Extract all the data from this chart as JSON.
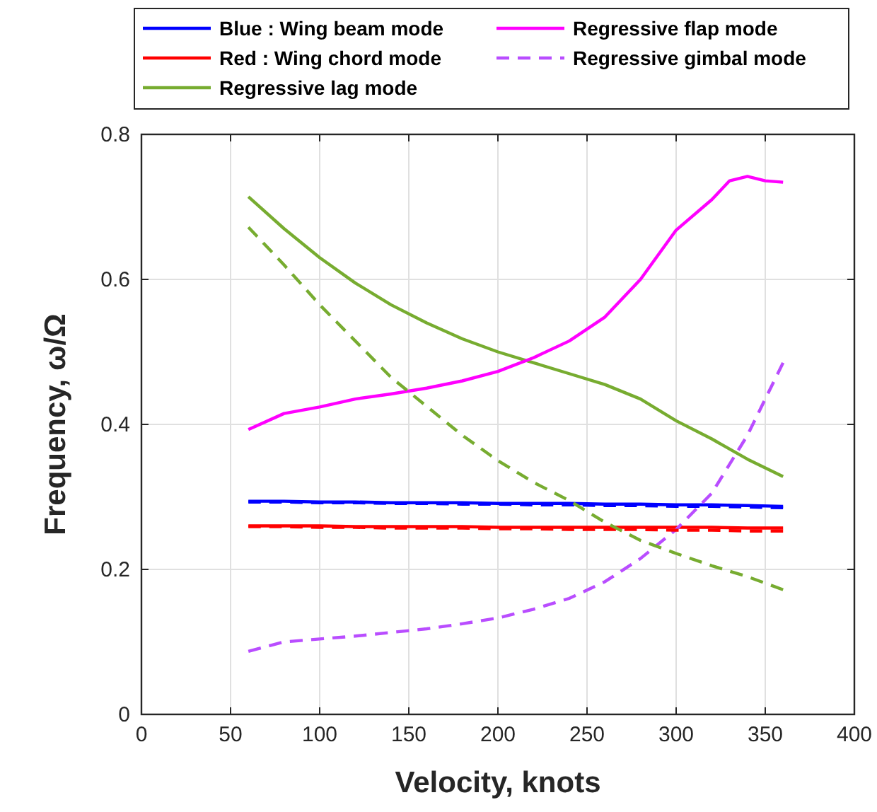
{
  "chart_data": {
    "type": "line",
    "xlabel": "Velocity, knots",
    "ylabel": "Frequency, ω/Ω",
    "xlim": [
      0,
      400
    ],
    "ylim": [
      0,
      0.8
    ],
    "xticks": [
      0,
      50,
      100,
      150,
      200,
      250,
      300,
      350,
      400
    ],
    "yticks": [
      0,
      0.2,
      0.4,
      0.6,
      0.8
    ],
    "grid": true,
    "legend": "top",
    "marker": "none",
    "x": [
      60,
      80,
      100,
      120,
      140,
      160,
      180,
      200,
      220,
      240,
      260,
      280,
      300,
      320,
      340,
      360
    ],
    "series": [
      {
        "name": "Blue : Wing beam mode",
        "color": "#0000ff",
        "line_style": "solid",
        "values": [
          0.294,
          0.294,
          0.293,
          0.293,
          0.292,
          0.292,
          0.292,
          0.291,
          0.291,
          0.291,
          0.29,
          0.29,
          0.289,
          0.289,
          0.288,
          0.287
        ]
      },
      {
        "name": "Red : Wing chord mode",
        "color": "#ff0000",
        "line_style": "solid",
        "values": [
          0.26,
          0.26,
          0.26,
          0.259,
          0.259,
          0.259,
          0.259,
          0.258,
          0.258,
          0.258,
          0.258,
          0.258,
          0.258,
          0.258,
          0.257,
          0.257
        ]
      },
      {
        "name": "Regressive lag mode",
        "color": "#77ac30",
        "line_style": "solid",
        "values": [
          0.714,
          0.67,
          0.63,
          0.595,
          0.565,
          0.54,
          0.518,
          0.5,
          0.485,
          0.47,
          0.455,
          0.435,
          0.405,
          0.38,
          0.352,
          0.328
        ]
      },
      {
        "name": "Regressive flap mode",
        "color": "#ff00ff",
        "line_style": "solid",
        "x": [
          60,
          80,
          100,
          120,
          140,
          160,
          180,
          200,
          220,
          240,
          260,
          280,
          300,
          320,
          330,
          340,
          350,
          360
        ],
        "values": [
          0.393,
          0.415,
          0.424,
          0.435,
          0.442,
          0.45,
          0.46,
          0.473,
          0.492,
          0.515,
          0.548,
          0.6,
          0.668,
          0.71,
          0.736,
          0.742,
          0.736,
          0.734
        ]
      },
      {
        "name": "Regressive gimbal mode",
        "color": "#b94dff",
        "line_style": "dashed",
        "values": [
          0.087,
          0.1,
          0.104,
          0.108,
          0.113,
          0.118,
          0.125,
          0.133,
          0.145,
          0.16,
          0.183,
          0.215,
          0.255,
          0.305,
          0.385,
          0.485
        ]
      },
      {
        "color": "#0000ff",
        "line_style": "dashed",
        "values": [
          0.293,
          0.293,
          0.292,
          0.292,
          0.291,
          0.291,
          0.29,
          0.29,
          0.289,
          0.289,
          0.288,
          0.288,
          0.287,
          0.287,
          0.286,
          0.285
        ]
      },
      {
        "color": "#ff0000",
        "line_style": "dashed",
        "values": [
          0.259,
          0.259,
          0.258,
          0.258,
          0.257,
          0.257,
          0.257,
          0.256,
          0.256,
          0.255,
          0.255,
          0.255,
          0.254,
          0.254,
          0.253,
          0.253
        ]
      },
      {
        "color": "#77ac30",
        "line_style": "dashed",
        "values": [
          0.672,
          0.62,
          0.565,
          0.515,
          0.465,
          0.425,
          0.385,
          0.35,
          0.32,
          0.295,
          0.265,
          0.24,
          0.222,
          0.205,
          0.19,
          0.172
        ]
      }
    ]
  }
}
